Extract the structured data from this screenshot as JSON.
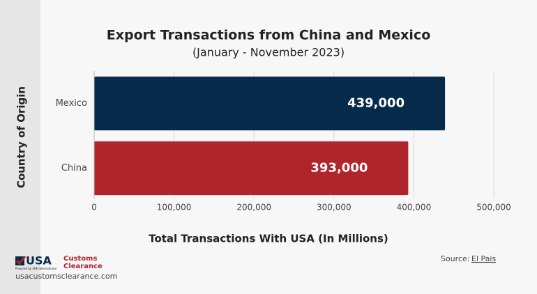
{
  "chart_data": {
    "type": "bar",
    "orientation": "horizontal",
    "title": "Export Transactions from China and Mexico",
    "subtitle": "(January - November 2023)",
    "x_label": "Total Transactions With USA (In Millions)",
    "y_label": "Country of Origin",
    "categories": [
      "Mexico",
      "China"
    ],
    "values": [
      439000,
      393000
    ],
    "value_labels": [
      "439,000",
      "393,000"
    ],
    "colors": [
      "#062a4a",
      "#b0252b"
    ],
    "xlim": [
      0,
      500000
    ],
    "xticks": [
      0,
      {
        "value": 100000,
        "label": "100,000"
      },
      {
        "value": 200000,
        "label": "200,000"
      },
      {
        "value": 300000,
        "label": "300,000"
      },
      {
        "value": 400000,
        "label": "400,000"
      },
      {
        "value": 500000,
        "label": "500,000"
      }
    ],
    "grid": true
  },
  "footer": {
    "source_label": "Source:",
    "source_name": "El Pais",
    "logo": {
      "mark": "USA",
      "line1": "Customs",
      "line2": "Clearance",
      "tagline": "Powered by APE International"
    },
    "website": "usacustomsclearance.com"
  }
}
